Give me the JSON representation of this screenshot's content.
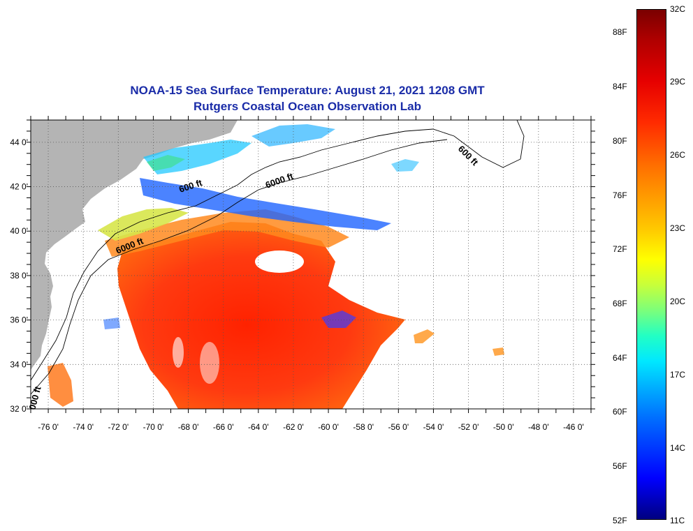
{
  "title": {
    "line1": "NOAA-15 Sea Surface Temperature:  August 21, 2021 1208 GMT",
    "line2": "Rutgers Coastal Ocean Observation Lab"
  },
  "map": {
    "lon_range": [
      -77,
      -45
    ],
    "lat_range": [
      32,
      45
    ],
    "lon_ticks": [
      "-76 0'",
      "-74 0'",
      "-72 0'",
      "-70 0'",
      "-68 0'",
      "-66 0'",
      "-64 0'",
      "-62 0'",
      "-60 0'",
      "-58 0'",
      "-56 0'",
      "-54 0'",
      "-52 0'",
      "-50 0'",
      "-48 0'",
      "-46 0'"
    ],
    "lat_ticks": [
      "32 0'",
      "34 0'",
      "36 0'",
      "38 0'",
      "40 0'",
      "42 0'",
      "44 0'"
    ],
    "contour_labels": [
      "600 ft",
      "6000 ft",
      "6000 ft",
      "600 ft",
      "000 ft"
    ],
    "colors": {
      "land": "#b4b4b4",
      "title": "#1a2ca8"
    }
  },
  "colorbar": {
    "fahrenheit_ticks": [
      "88F",
      "84F",
      "80F",
      "76F",
      "72F",
      "68F",
      "64F",
      "60F",
      "56F",
      "52F"
    ],
    "celsius_ticks": [
      "32C",
      "29C",
      "26C",
      "23C",
      "20C",
      "17C",
      "14C",
      "11C"
    ]
  }
}
